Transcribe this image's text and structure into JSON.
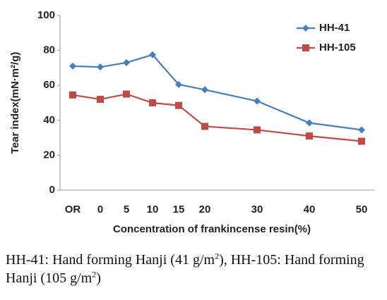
{
  "chart_data": {
    "type": "line",
    "categories": [
      "OR",
      "0",
      "5",
      "10",
      "15",
      "20",
      "30",
      "40",
      "50"
    ],
    "series": [
      {
        "name": "HH-41",
        "color": "#4a7ebb",
        "marker": "diamond",
        "values": [
          71,
          70.5,
          73,
          77.5,
          60.5,
          57.5,
          51,
          38.5,
          34.5
        ]
      },
      {
        "name": "HH-105",
        "color": "#be4b48",
        "marker": "square",
        "values": [
          54.5,
          52,
          55,
          50,
          48.5,
          36.5,
          34.5,
          31,
          28
        ]
      }
    ],
    "xlabel": "Concentration of frankincense resin(%)",
    "ylabel": "Tear index(mN·m²/g)",
    "ylim": [
      0,
      100
    ],
    "yticks": [
      0,
      20,
      40,
      60,
      80,
      100
    ],
    "grid": false
  },
  "caption": [
    "HH-41: Hand forming Hanji (41 g/m",
    "2",
    "), HH-105: Hand forming Hanji (105 g/m",
    "2",
    ")"
  ]
}
